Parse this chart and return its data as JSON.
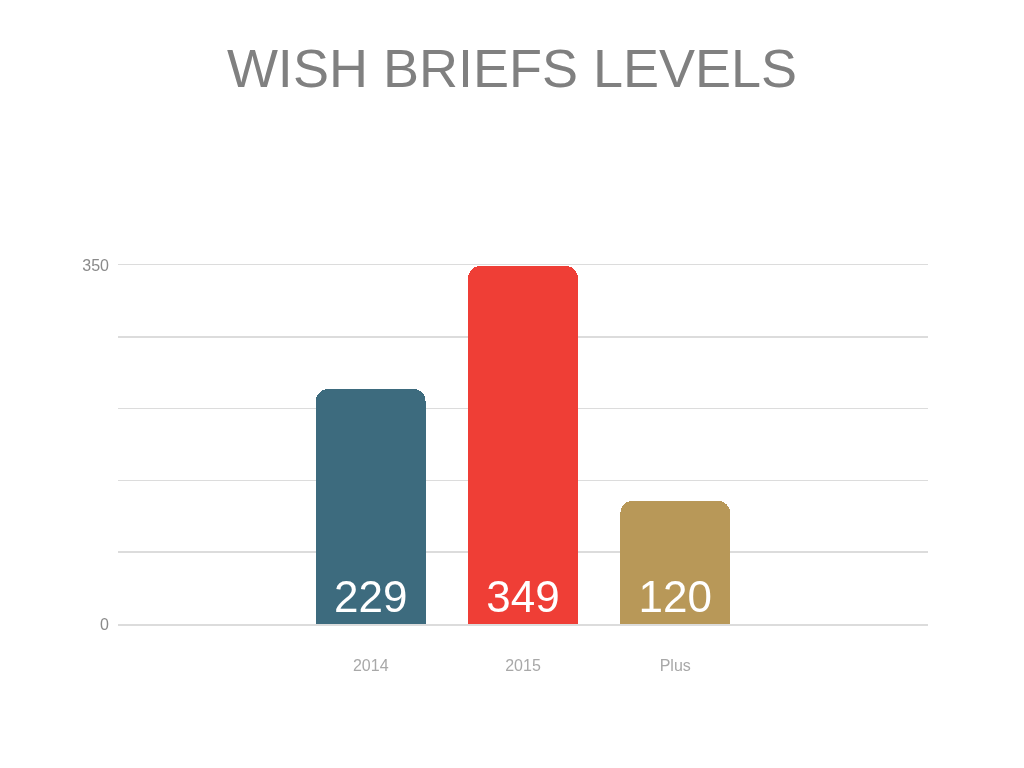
{
  "chart_data": {
    "type": "bar",
    "title": "WISH BRIEFS LEVELS",
    "categories": [
      "2014",
      "2015",
      "Plus"
    ],
    "values": [
      229,
      349,
      120
    ],
    "colors": [
      "#3d6b7e",
      "#ef3e36",
      "#b89858"
    ],
    "ylim": [
      0,
      350
    ],
    "yticks": [
      0,
      {
        "value": 70,
        "label": null
      },
      {
        "value": 140,
        "label": null
      },
      {
        "value": 210,
        "label": null
      },
      {
        "value": 280,
        "label": null
      },
      350
    ],
    "grid": "y",
    "data_labels": true
  }
}
